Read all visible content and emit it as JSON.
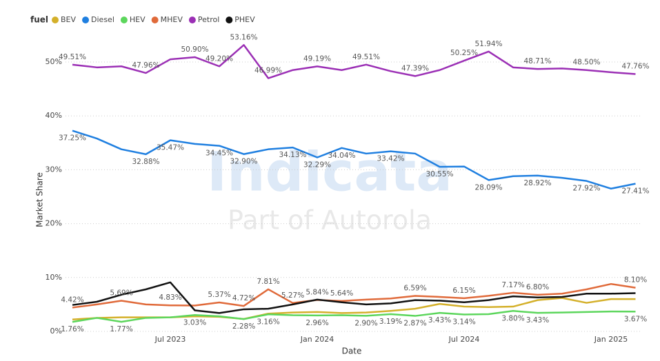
{
  "chart_data": {
    "type": "line",
    "legend_title": "fuel",
    "watermark": "Indicata",
    "watermark_subtitle": "Part of Autorola",
    "x_label": "Date",
    "y_label": "Market Share",
    "categories": [
      null,
      null,
      null,
      null,
      "Jul 2023",
      null,
      null,
      null,
      null,
      null,
      "Jan 2024",
      null,
      null,
      null,
      null,
      null,
      "Jul 2024",
      null,
      null,
      null,
      null,
      null,
      "Jan 2025",
      null
    ],
    "ylim": [
      0,
      55
    ],
    "yticks": [
      {
        "value": 0,
        "label": "0%"
      },
      {
        "value": 10,
        "label": "10%"
      },
      {
        "value": 20,
        "label": "20%"
      },
      {
        "value": 30,
        "label": "30%"
      },
      {
        "value": 40,
        "label": "40%"
      },
      {
        "value": 50,
        "label": "50%"
      }
    ],
    "grid": true,
    "legend_position": "top-left",
    "series": [
      {
        "name": "BEV",
        "color": "#d4b02a",
        "values": [
          2.2,
          2.5,
          2.6,
          2.6,
          2.6,
          2.8,
          2.7,
          2.3,
          3.3,
          3.5,
          3.6,
          3.4,
          3.5,
          3.8,
          4.2,
          5.1,
          4.6,
          4.5,
          4.6,
          5.8,
          6.2,
          5.3,
          6.0,
          6.0
        ]
      },
      {
        "name": "Diesel",
        "color": "#1f7fe0",
        "values": [
          37.25,
          35.8,
          33.8,
          32.88,
          35.47,
          34.8,
          34.45,
          32.9,
          33.8,
          34.13,
          32.29,
          34.04,
          33.0,
          33.42,
          33.0,
          30.55,
          30.6,
          28.09,
          28.8,
          28.92,
          28.5,
          27.92,
          26.5,
          27.41
        ],
        "value_labels": [
          "37.25%",
          null,
          null,
          "32.88%",
          "35.47%",
          null,
          "34.45%",
          "32.90%",
          null,
          "34.13%",
          "32.29%",
          "34.04%",
          null,
          "33.42%",
          null,
          "30.55%",
          null,
          "28.09%",
          null,
          "28.92%",
          null,
          "27.92%",
          null,
          "27.41%"
        ]
      },
      {
        "name": "HEV",
        "color": "#5cd65c",
        "values": [
          1.76,
          2.5,
          1.77,
          2.5,
          2.6,
          3.03,
          2.8,
          2.28,
          3.16,
          3.0,
          2.96,
          3.0,
          2.9,
          3.19,
          2.87,
          3.43,
          3.14,
          3.2,
          3.8,
          3.43,
          3.5,
          3.6,
          3.7,
          3.67
        ],
        "value_labels": [
          "1.76%",
          null,
          "1.77%",
          null,
          null,
          "3.03%",
          null,
          "2.28%",
          "3.16%",
          null,
          "2.96%",
          null,
          "2.90%",
          "3.19%",
          "2.87%",
          "3.43%",
          "3.14%",
          null,
          "3.80%",
          "3.43%",
          null,
          null,
          null,
          "3.67%"
        ]
      },
      {
        "name": "MHEV",
        "color": "#e06a3a",
        "values": [
          4.42,
          5.0,
          5.69,
          5.0,
          4.83,
          4.8,
          5.37,
          4.72,
          7.81,
          5.27,
          5.84,
          5.64,
          5.9,
          6.1,
          6.59,
          6.4,
          6.15,
          6.6,
          7.17,
          6.8,
          7.0,
          7.8,
          8.8,
          8.1
        ],
        "value_labels": [
          "4.42%",
          null,
          "5.69%",
          null,
          "4.83%",
          null,
          "5.37%",
          "4.72%",
          "7.81%",
          "5.27%",
          "5.84%",
          "5.64%",
          null,
          null,
          "6.59%",
          null,
          "6.15%",
          null,
          "7.17%",
          "6.80%",
          null,
          null,
          null,
          "8.10%"
        ]
      },
      {
        "name": "Petrol",
        "color": "#9b2fb5",
        "values": [
          49.51,
          49.0,
          49.2,
          47.96,
          50.5,
          50.9,
          49.2,
          53.16,
          46.99,
          48.5,
          49.19,
          48.5,
          49.51,
          48.3,
          47.39,
          48.5,
          50.25,
          51.94,
          49.0,
          48.71,
          48.8,
          48.5,
          48.1,
          47.76
        ],
        "value_labels": [
          "49.51%",
          null,
          null,
          "47.96%",
          null,
          "50.90%",
          "49.20%",
          "53.16%",
          "46.99%",
          null,
          "49.19%",
          null,
          "49.51%",
          null,
          "47.39%",
          null,
          "50.25%",
          "51.94%",
          null,
          "48.71%",
          null,
          "48.50%",
          null,
          "47.76%"
        ]
      },
      {
        "name": "PHEV",
        "color": "#111111",
        "values": [
          4.9,
          5.5,
          6.8,
          7.8,
          9.1,
          3.9,
          3.4,
          4.1,
          4.2,
          5.0,
          5.9,
          5.4,
          5.0,
          5.2,
          5.8,
          5.7,
          5.4,
          5.8,
          6.5,
          6.3,
          6.4,
          7.0,
          7.0,
          7.1
        ]
      }
    ]
  }
}
